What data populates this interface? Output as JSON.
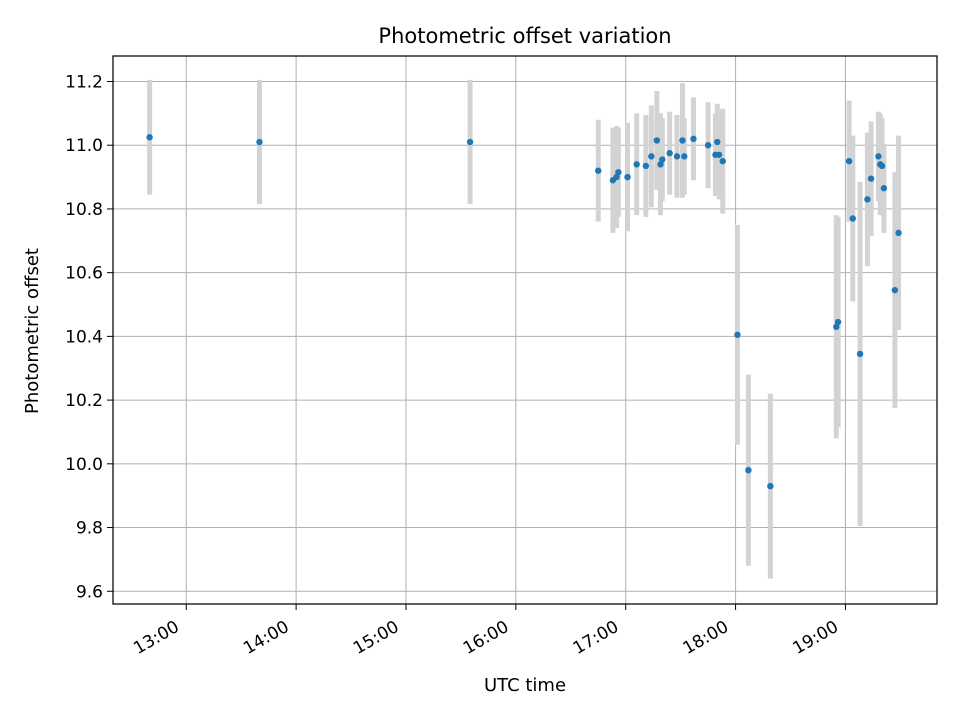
{
  "chart_data": {
    "type": "scatter",
    "title": "Photometric offset variation",
    "xlabel": "UTC time",
    "ylabel": "Photometric offset",
    "grid": true,
    "legend": false,
    "x_tick_labels": [
      "13:00",
      "14:00",
      "15:00",
      "16:00",
      "17:00",
      "18:00",
      "19:00"
    ],
    "y_tick_labels": [
      "9.6",
      "9.8",
      "10.0",
      "10.2",
      "10.4",
      "10.6",
      "10.8",
      "11.0",
      "11.2"
    ],
    "y_ticks": [
      9.6,
      9.8,
      10.0,
      10.2,
      10.4,
      10.6,
      10.8,
      11.0,
      11.2
    ],
    "x_ticks": [
      "13:00",
      "14:00",
      "15:00",
      "16:00",
      "17:00",
      "18:00",
      "19:00"
    ],
    "xlim": [
      "12:20",
      "19:50"
    ],
    "ylim": [
      9.56,
      11.28
    ],
    "colors": {
      "marker": "#1f77b4",
      "errorbar": "#d3d3d3",
      "grid": "#b0b0b0"
    },
    "points": [
      {
        "t": "12:40",
        "y": 11.025,
        "err": 0.18
      },
      {
        "t": "13:40",
        "y": 11.01,
        "err": 0.195
      },
      {
        "t": "15:35",
        "y": 11.01,
        "err": 0.195
      },
      {
        "t": "16:45",
        "y": 10.92,
        "err": 0.16
      },
      {
        "t": "16:53",
        "y": 10.89,
        "err": 0.165
      },
      {
        "t": "16:55",
        "y": 10.9,
        "err": 0.16
      },
      {
        "t": "16:56",
        "y": 10.915,
        "err": 0.14
      },
      {
        "t": "17:01",
        "y": 10.9,
        "err": 0.17
      },
      {
        "t": "17:06",
        "y": 10.94,
        "err": 0.16
      },
      {
        "t": "17:11",
        "y": 10.935,
        "err": 0.16
      },
      {
        "t": "17:14",
        "y": 10.965,
        "err": 0.16
      },
      {
        "t": "17:17",
        "y": 11.015,
        "err": 0.155
      },
      {
        "t": "17:19",
        "y": 10.94,
        "err": 0.16
      },
      {
        "t": "17:20",
        "y": 10.955,
        "err": 0.13
      },
      {
        "t": "17:24",
        "y": 10.975,
        "err": 0.13
      },
      {
        "t": "17:28",
        "y": 10.965,
        "err": 0.13
      },
      {
        "t": "17:31",
        "y": 11.015,
        "err": 0.18
      },
      {
        "t": "17:32",
        "y": 10.965,
        "err": 0.12
      },
      {
        "t": "17:37",
        "y": 11.02,
        "err": 0.13
      },
      {
        "t": "17:45",
        "y": 11.0,
        "err": 0.135
      },
      {
        "t": "17:49",
        "y": 10.97,
        "err": 0.13
      },
      {
        "t": "17:50",
        "y": 11.01,
        "err": 0.12
      },
      {
        "t": "17:51",
        "y": 10.97,
        "err": 0.14
      },
      {
        "t": "17:53",
        "y": 10.95,
        "err": 0.165
      },
      {
        "t": "18:01",
        "y": 10.405,
        "err": 0.345
      },
      {
        "t": "18:07",
        "y": 9.98,
        "err": 0.3
      },
      {
        "t": "18:19",
        "y": 9.93,
        "err": 0.29
      },
      {
        "t": "18:55",
        "y": 10.43,
        "err": 0.35
      },
      {
        "t": "18:56",
        "y": 10.445,
        "err": 0.33
      },
      {
        "t": "19:02",
        "y": 10.95,
        "err": 0.19
      },
      {
        "t": "19:04",
        "y": 10.77,
        "err": 0.26
      },
      {
        "t": "19:08",
        "y": 10.345,
        "err": 0.54
      },
      {
        "t": "19:12",
        "y": 10.83,
        "err": 0.21
      },
      {
        "t": "19:14",
        "y": 10.895,
        "err": 0.18
      },
      {
        "t": "19:18",
        "y": 10.965,
        "err": 0.14
      },
      {
        "t": "19:19",
        "y": 10.94,
        "err": 0.16
      },
      {
        "t": "19:20",
        "y": 10.935,
        "err": 0.15
      },
      {
        "t": "19:21",
        "y": 10.865,
        "err": 0.14
      },
      {
        "t": "19:27",
        "y": 10.545,
        "err": 0.37
      },
      {
        "t": "19:29",
        "y": 10.725,
        "err": 0.305
      }
    ]
  }
}
